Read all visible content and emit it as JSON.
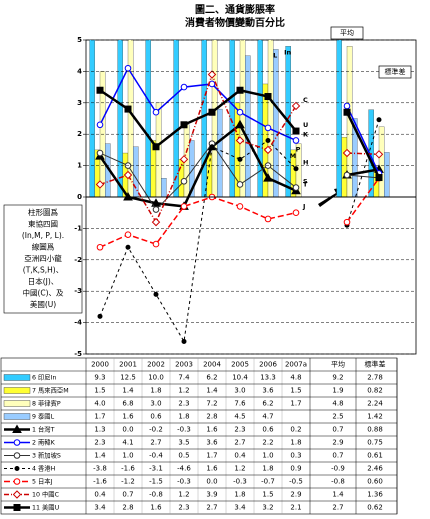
{
  "chart_data": {
    "type": "combo",
    "title": "圖二、通貨膨脹率",
    "subtitle": "消費者物價變動百分比",
    "note": [
      "柱形圖爲",
      "東協四國",
      "(In,M, P, L).",
      "線圖爲",
      "亞洲四小龍",
      "(T,K,S,H)、",
      "日本(J)、",
      "中國(C)、及",
      "美國(U)"
    ],
    "categories": [
      "2000",
      "2001",
      "2002",
      "2003",
      "2004",
      "2005",
      "2006",
      "2007a"
    ],
    "summary_categories": [
      "平均",
      "標準差"
    ],
    "ylim": [
      -5,
      5
    ],
    "yticks": [
      -5,
      -4,
      -3,
      -2,
      -1,
      0,
      1,
      2,
      3,
      4,
      5
    ],
    "grid": true,
    "series": [
      {
        "name": "6 印尼In",
        "label": "In",
        "style": "bar",
        "color": "#33ccff",
        "values": [
          9.3,
          12.5,
          10.0,
          7.4,
          6.2,
          10.4,
          13.3,
          4.8
        ],
        "value_labels": [
          "9.3",
          "12.5",
          "10.0",
          "7.4",
          "6.2",
          "10.4",
          "13.3",
          "4.8"
        ],
        "mean": 9.2,
        "mean_label": "9.2",
        "std": 2.78,
        "std_label": "2.78"
      },
      {
        "name": "7 馬來西亞M",
        "label": "M",
        "style": "bar",
        "color": "#ffff33",
        "values": [
          1.5,
          1.4,
          1.8,
          1.2,
          1.4,
          3.0,
          3.6,
          1.5
        ],
        "value_labels": [
          "1.5",
          "1.4",
          "1.8",
          "1.2",
          "1.4",
          "3.0",
          "3.6",
          "1.5"
        ],
        "mean": 1.9,
        "mean_label": "1.9",
        "std": 0.82,
        "std_label": "0.82"
      },
      {
        "name": "8 菲律賓P",
        "label": "P",
        "style": "bar",
        "color": "#ffffbb",
        "values": [
          4.0,
          6.8,
          3.0,
          2.3,
          7.2,
          7.6,
          6.2,
          1.7
        ],
        "value_labels": [
          "4.0",
          "6.8",
          "3.0",
          "2.3",
          "7.2",
          "7.6",
          "6.2",
          "1.7"
        ],
        "mean": 4.8,
        "mean_label": "4.8",
        "std": 2.24,
        "std_label": "2.24"
      },
      {
        "name": "9 泰國L",
        "label": "L",
        "style": "bar",
        "color": "#99ccff",
        "values": [
          1.7,
          1.6,
          0.6,
          1.8,
          2.8,
          4.5,
          4.7,
          null
        ],
        "value_labels": [
          "1.7",
          "1.6",
          "0.6",
          "1.8",
          "2.8",
          "4.5",
          "4.7",
          null
        ],
        "mean": 2.5,
        "mean_label": "2.5",
        "std": 1.42,
        "std_label": "1.42"
      },
      {
        "name": "1 台灣T",
        "label": "T",
        "style": "line",
        "marker": "triangle",
        "dash": "none",
        "width": 2.5,
        "color": "#000000",
        "values": [
          1.3,
          0.0,
          -0.2,
          -0.3,
          1.6,
          2.3,
          0.6,
          0.2
        ],
        "value_labels": [
          "1.3",
          "0.0",
          "-0.2",
          "-0.3",
          "1.6",
          "2.3",
          "0.6",
          "0.2"
        ],
        "mean": 0.7,
        "mean_label": "0.7",
        "std": 0.88,
        "std_label": "0.88"
      },
      {
        "name": "2 南韓K",
        "label": "K",
        "style": "line",
        "marker": "circle",
        "dash": "none",
        "width": 1.5,
        "color": "#0000ff",
        "values": [
          2.3,
          4.1,
          2.7,
          3.5,
          3.6,
          2.7,
          2.2,
          1.8
        ],
        "value_labels": [
          "2.3",
          "4.1",
          "2.7",
          "3.5",
          "3.6",
          "2.7",
          "2.2",
          "1.8"
        ],
        "mean": 2.9,
        "mean_label": "2.9",
        "std": 0.75,
        "std_label": "0.75"
      },
      {
        "name": "3 新加坡S",
        "label": "S",
        "style": "line",
        "marker": "circle",
        "dash": "none",
        "width": 1,
        "color": "#333333",
        "values": [
          1.4,
          1.0,
          -0.4,
          0.5,
          1.7,
          0.4,
          1.0,
          0.3
        ],
        "value_labels": [
          "1.4",
          "1.0",
          "-0.4",
          "0.5",
          "1.7",
          "0.4",
          "1.0",
          "0.3"
        ],
        "mean": 0.7,
        "mean_label": "0.7",
        "std": 0.61,
        "std_label": "0.61"
      },
      {
        "name": "4 香港H",
        "label": "H",
        "style": "line",
        "marker": "dot",
        "dash": "3,3",
        "width": 1,
        "color": "#000000",
        "values": [
          -3.8,
          -1.6,
          -3.1,
          -4.6,
          1.6,
          1.2,
          1.8,
          0.9
        ],
        "value_labels": [
          "-3.8",
          "-1.6",
          "-3.1",
          "-4.6",
          "1.6",
          "1.2",
          "1.8",
          "0.9"
        ],
        "mean": -0.9,
        "mean_label": "-0.9",
        "std": 2.46,
        "std_label": "2.46"
      },
      {
        "name": "5 日本J",
        "label": "J",
        "style": "line",
        "marker": "circle",
        "dash": "6,3",
        "width": 1.5,
        "color": "#ff0000",
        "values": [
          -1.6,
          -1.2,
          -1.5,
          -0.3,
          0.0,
          -0.3,
          -0.7,
          -0.5
        ],
        "value_labels": [
          "-1.6",
          "-1.2",
          "-1.5",
          "-0.3",
          "0.0",
          "-0.3",
          "-0.7",
          "-0.5"
        ],
        "mean": -0.8,
        "mean_label": "-0.8",
        "std": 0.6,
        "std_label": "0.60"
      },
      {
        "name": "10 中國C",
        "label": "C",
        "style": "line",
        "marker": "diamond",
        "dash": "5,2,1,2",
        "width": 1.5,
        "color": "#cc0000",
        "values": [
          0.4,
          0.7,
          -0.8,
          1.2,
          3.9,
          1.8,
          1.5,
          2.9
        ],
        "value_labels": [
          "0.4",
          "0.7",
          "-0.8",
          "1.2",
          "3.9",
          "1.8",
          "1.5",
          "2.9"
        ],
        "mean": 1.4,
        "mean_label": "1.4",
        "std": 1.36,
        "std_label": "1.36"
      },
      {
        "name": "11 美國U",
        "label": "U",
        "style": "line",
        "marker": "square",
        "dash": "none",
        "width": 2.5,
        "color": "#000000",
        "values": [
          3.4,
          2.8,
          1.6,
          2.3,
          2.7,
          3.4,
          3.2,
          2.1
        ],
        "value_labels": [
          "3.4",
          "2.8",
          "1.6",
          "2.3",
          "2.7",
          "3.4",
          "3.2",
          "2.1"
        ],
        "mean": 2.7,
        "mean_label": "2.7",
        "std": 0.62,
        "std_label": "0.62"
      }
    ]
  }
}
